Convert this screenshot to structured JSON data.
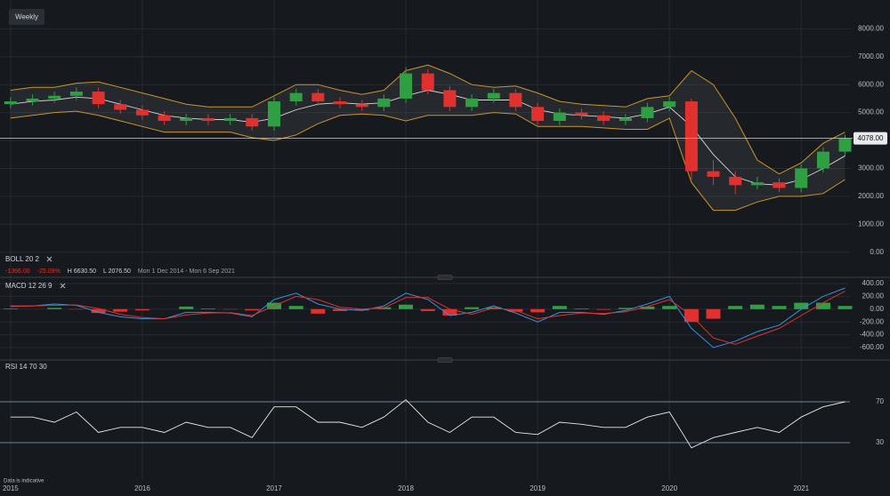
{
  "toolbar": {
    "timeframe": "Weekly"
  },
  "footer": "Data is indicative",
  "chart_data": [
    {
      "type": "candlestick",
      "indicator": "BOLL 20 2",
      "stats": [
        "-1366.00",
        "-25.09%",
        "H 6630.50",
        "L 2076.50",
        "Mon 1 Dec 2014 - Mon 6 Sep 2021"
      ],
      "last_price": {
        "value": 4078,
        "label": "4078.00"
      },
      "x": [
        2015.0,
        2015.167,
        2015.333,
        2015.5,
        2015.667,
        2015.833,
        2016.0,
        2016.167,
        2016.333,
        2016.5,
        2016.667,
        2016.833,
        2017.0,
        2017.167,
        2017.333,
        2017.5,
        2017.667,
        2017.833,
        2018.0,
        2018.167,
        2018.333,
        2018.5,
        2018.667,
        2018.833,
        2019.0,
        2019.167,
        2019.333,
        2019.5,
        2019.667,
        2019.833,
        2020.0,
        2020.167,
        2020.333,
        2020.5,
        2020.667,
        2020.833,
        2021.0,
        2021.167,
        2021.333
      ],
      "open": [
        5300,
        5400,
        5500,
        5600,
        5750,
        5300,
        5100,
        4900,
        4700,
        4800,
        4700,
        4800,
        4500,
        5400,
        5700,
        5400,
        5300,
        5200,
        5500,
        6400,
        5800,
        5200,
        5500,
        5700,
        5200,
        4700,
        5000,
        4900,
        4700,
        4800,
        5200,
        5400,
        2900,
        2700,
        2400,
        2500,
        2300,
        3000,
        3600
      ],
      "high": [
        5550,
        5650,
        5750,
        5900,
        5900,
        5450,
        5250,
        5050,
        4950,
        4950,
        4950,
        4950,
        5550,
        5850,
        5850,
        5550,
        5450,
        5650,
        6630.5,
        6550,
        5950,
        5650,
        5850,
        5850,
        5350,
        5150,
        5150,
        5050,
        4950,
        5350,
        5550,
        5500,
        3300,
        2900,
        2700,
        2650,
        3150,
        3750,
        4200
      ],
      "low": [
        5150,
        5250,
        5350,
        5450,
        5150,
        4950,
        4750,
        4550,
        4550,
        4550,
        4550,
        4350,
        4350,
        5250,
        5250,
        5150,
        5050,
        5050,
        5350,
        5650,
        5050,
        5050,
        5350,
        5050,
        4550,
        4550,
        4750,
        4550,
        4550,
        4650,
        5050,
        2600,
        2400,
        2076.5,
        2250,
        2150,
        2150,
        2850,
        3450
      ],
      "close": [
        5400,
        5500,
        5600,
        5750,
        5300,
        5100,
        4900,
        4700,
        4800,
        4700,
        4800,
        4500,
        5400,
        5700,
        5400,
        5300,
        5200,
        5500,
        6400,
        5800,
        5200,
        5500,
        5700,
        5200,
        4700,
        5000,
        4900,
        4700,
        4800,
        5200,
        5400,
        2900,
        2700,
        2400,
        2500,
        2300,
        3000,
        3600,
        4078
      ],
      "upper": [
        5800,
        5900,
        5900,
        6050,
        6100,
        5900,
        5700,
        5500,
        5300,
        5200,
        5200,
        5200,
        5600,
        6000,
        6000,
        5800,
        5650,
        5800,
        6500,
        6700,
        6400,
        6000,
        5900,
        5950,
        5700,
        5400,
        5300,
        5250,
        5200,
        5500,
        5600,
        6500,
        6000,
        4800,
        3300,
        2800,
        3200,
        3900,
        4300
      ],
      "middle": [
        5300,
        5400,
        5450,
        5550,
        5500,
        5300,
        5100,
        4900,
        4800,
        4750,
        4750,
        4650,
        4800,
        5100,
        5300,
        5350,
        5300,
        5350,
        5600,
        5800,
        5650,
        5450,
        5450,
        5450,
        5100,
        4950,
        4900,
        4850,
        4800,
        4950,
        5200,
        4500,
        3500,
        2700,
        2450,
        2400,
        2600,
        3000,
        3450
      ],
      "lower": [
        4800,
        4900,
        5000,
        5050,
        4900,
        4700,
        4500,
        4300,
        4300,
        4300,
        4300,
        4100,
        4000,
        4200,
        4600,
        4900,
        4950,
        4900,
        4700,
        4900,
        4900,
        4900,
        5000,
        4950,
        4500,
        4500,
        4500,
        4450,
        4400,
        4400,
        4800,
        2500,
        1500,
        1500,
        1800,
        2000,
        2000,
        2100,
        2600
      ],
      "up_color": "#2ea043",
      "down_color": "#e0312f",
      "band_color": "#c9952c",
      "middle_color": "#d8d8d8",
      "xlim": [
        2014.92,
        2021.37
      ],
      "xticks": [
        2015,
        2016,
        2017,
        2018,
        2019,
        2020,
        2021
      ],
      "ylim": [
        -900,
        9030
      ],
      "yticks": [
        {
          "value": 0,
          "label": "0.00"
        },
        {
          "value": 1000,
          "label": "1000.00"
        },
        {
          "value": 2000,
          "label": "2000.00"
        },
        {
          "value": 3000,
          "label": "3000.00"
        },
        {
          "value": 4000,
          "label": "4000.00"
        },
        {
          "value": 5000,
          "label": "5000.00"
        },
        {
          "value": 6000,
          "label": "6000.00"
        },
        {
          "value": 7000,
          "label": "7000.00"
        },
        {
          "value": 8000,
          "label": "8000.00"
        }
      ],
      "grid": true
    },
    {
      "type": "macd",
      "indicator": "MACD 12 26 9",
      "macd": [
        50,
        50,
        80,
        60,
        -50,
        -120,
        -150,
        -150,
        -50,
        -50,
        -60,
        -120,
        150,
        250,
        80,
        0,
        -20,
        50,
        250,
        150,
        -100,
        -50,
        50,
        -60,
        -200,
        -50,
        -50,
        -80,
        -20,
        80,
        200,
        -300,
        -600,
        -500,
        -350,
        -250,
        0,
        200,
        330
      ],
      "signal": [
        40,
        50,
        60,
        65,
        10,
        -80,
        -130,
        -150,
        -90,
        -60,
        -55,
        -100,
        50,
        200,
        150,
        30,
        0,
        20,
        180,
        180,
        0,
        -80,
        20,
        -20,
        -150,
        -100,
        -60,
        -70,
        -40,
        40,
        150,
        -100,
        -450,
        -550,
        -420,
        -300,
        -100,
        100,
        280
      ],
      "histogram": [
        10,
        0,
        20,
        -5,
        -60,
        -40,
        -20,
        0,
        40,
        10,
        -5,
        -20,
        100,
        50,
        -70,
        -30,
        -20,
        30,
        70,
        -30,
        -100,
        30,
        30,
        -40,
        -50,
        50,
        10,
        -10,
        20,
        40,
        50,
        -200,
        -150,
        50,
        70,
        50,
        100,
        100,
        50
      ],
      "macd_color": "#3b8fd9",
      "signal_color": "#e0312f",
      "up_color": "#2ea043",
      "down_color": "#e0312f",
      "ylim": [
        -794,
        469
      ],
      "yticks": [
        {
          "value": 400,
          "label": "400.00"
        },
        {
          "value": 200,
          "label": "200.00"
        },
        {
          "value": 0,
          "label": "0.00"
        },
        {
          "value": -200,
          "label": "-200.00"
        },
        {
          "value": -400,
          "label": "-400.00"
        },
        {
          "value": -600,
          "label": "-600.00"
        }
      ],
      "grid": true
    },
    {
      "type": "rsi",
      "indicator": "RSI 14 70 30",
      "values": [
        55,
        55,
        50,
        60,
        40,
        45,
        45,
        40,
        50,
        45,
        45,
        35,
        65,
        65,
        50,
        50,
        45,
        55,
        72,
        50,
        40,
        55,
        55,
        40,
        38,
        50,
        48,
        45,
        45,
        55,
        60,
        25,
        35,
        40,
        45,
        40,
        55,
        65,
        70
      ],
      "color": "#e8e8e8",
      "level_color": "#8fa8c0",
      "ylim": [
        -6.5,
        106.5
      ],
      "yticks": [
        30,
        70
      ],
      "grid": true
    }
  ]
}
